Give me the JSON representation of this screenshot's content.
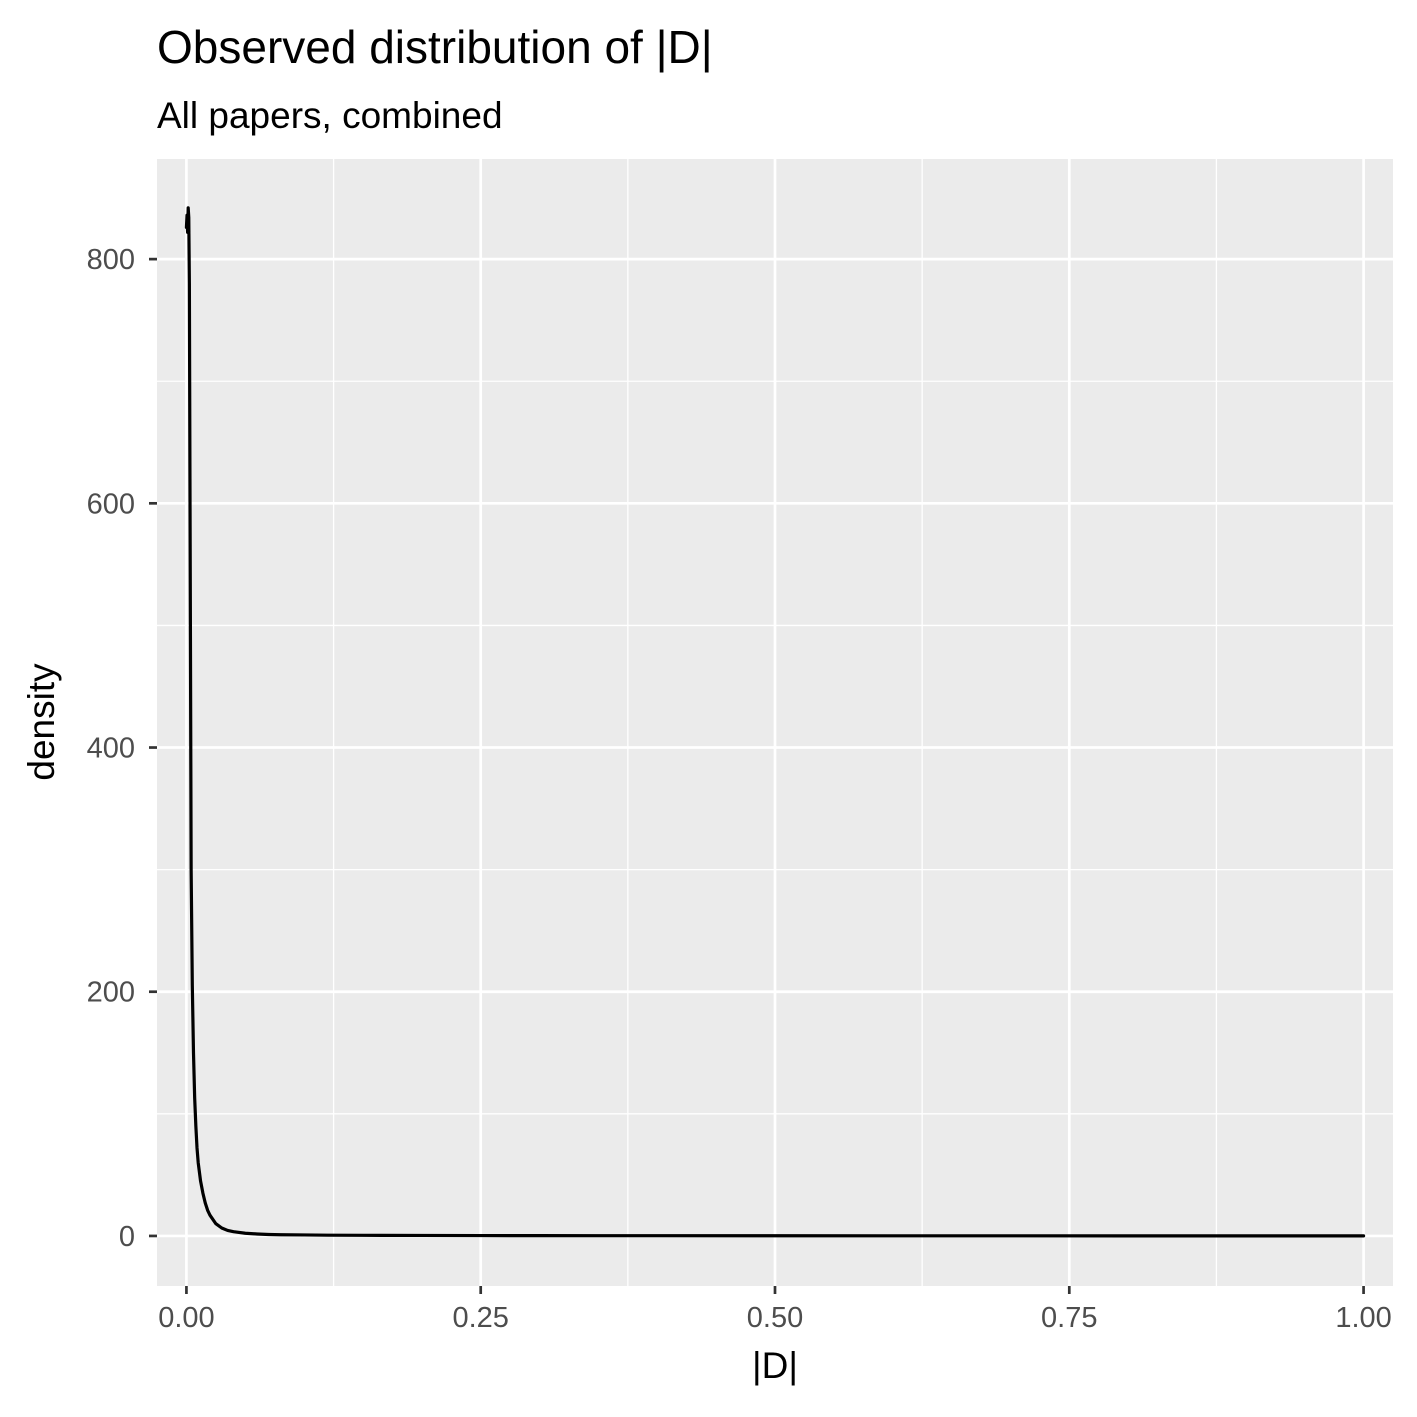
{
  "chart_data": {
    "type": "line",
    "title": "Observed distribution of |D|",
    "subtitle": "All papers, combined",
    "xlabel": "|D|",
    "ylabel": "density",
    "xlim": [
      -0.025,
      1.025
    ],
    "ylim": [
      -41,
      882
    ],
    "x_ticks": [
      {
        "value": 0,
        "label": "0.00"
      },
      {
        "value": 0.25,
        "label": "0.25"
      },
      {
        "value": 0.5,
        "label": "0.50"
      },
      {
        "value": 0.75,
        "label": "0.75"
      },
      {
        "value": 1,
        "label": "1.00"
      }
    ],
    "y_ticks": [
      {
        "value": 0,
        "label": "0"
      },
      {
        "value": 200,
        "label": "200"
      },
      {
        "value": 400,
        "label": "400"
      },
      {
        "value": 600,
        "label": "600"
      },
      {
        "value": 800,
        "label": "800"
      }
    ],
    "x_minor": [
      0.125,
      0.375,
      0.625,
      0.875
    ],
    "y_minor": [
      100,
      300,
      500,
      700
    ],
    "grid": true,
    "colors": {
      "panel_background": "#ebebeb",
      "grid": "#ffffff",
      "line": "#000000"
    },
    "series": [
      {
        "x": [
          0.0,
          0.0005,
          0.001,
          0.0015,
          0.002,
          0.0025,
          0.003,
          0.0035,
          0.004,
          0.005,
          0.006,
          0.007,
          0.008,
          0.009,
          0.01,
          0.012,
          0.014,
          0.016,
          0.018,
          0.02,
          0.025,
          0.03,
          0.035,
          0.04,
          0.05,
          0.06,
          0.07,
          0.08,
          0.1,
          0.12,
          0.15,
          0.2,
          0.25,
          0.3,
          0.35,
          0.4,
          0.5,
          0.6,
          0.7,
          0.8,
          0.9,
          1.0
        ],
        "y": [
          826,
          836,
          822,
          842,
          834,
          780,
          620,
          460,
          300,
          205,
          150,
          113,
          90,
          72,
          60,
          45,
          35,
          27,
          21,
          17,
          10,
          6.5,
          4.5,
          3.5,
          2.2,
          1.6,
          1.2,
          1.0,
          0.8,
          0.6,
          0.5,
          0.4,
          0.3,
          0.25,
          0.2,
          0.2,
          0.15,
          0.1,
          0.1,
          0.08,
          0.05,
          0.02
        ]
      }
    ]
  }
}
